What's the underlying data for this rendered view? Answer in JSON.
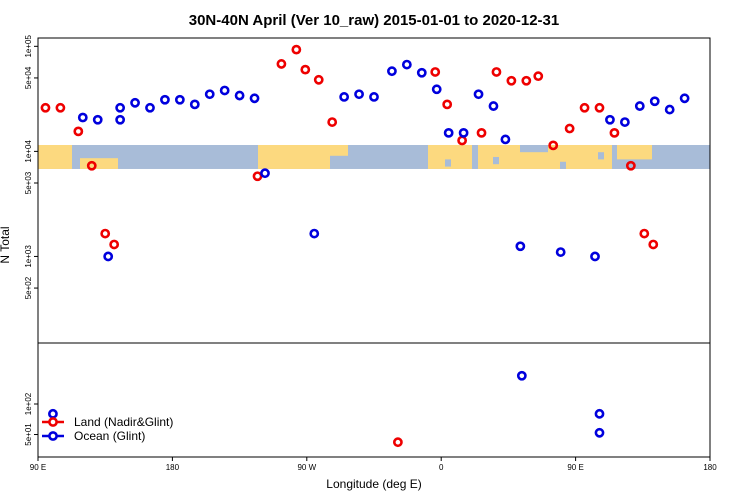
{
  "chart_data": {
    "type": "scatter",
    "title": "30N-40N April (Ver 10_raw)   2015-01-01 to 2020-12-31",
    "xlabel": "Longitude (deg E)",
    "ylabel": "N Total",
    "x_ticks": [
      {
        "value": 90,
        "label": "90 E"
      },
      {
        "value": 180,
        "label": "180"
      },
      {
        "value": 270,
        "label": "90 W"
      },
      {
        "value": 360,
        "label": "0"
      },
      {
        "value": 450,
        "label": "90 E"
      },
      {
        "value": 540,
        "label": "180"
      }
    ],
    "xlim": [
      90,
      540
    ],
    "upper_panel": {
      "scale": "log",
      "ylim": [
        150,
        120000
      ],
      "y_ticks": [
        {
          "value": 500,
          "label": "5e+02"
        },
        {
          "value": 1000,
          "label": "1e+03"
        },
        {
          "value": 5000,
          "label": "5e+03"
        },
        {
          "value": 10000,
          "label": "1e+04"
        },
        {
          "value": 50000,
          "label": "5e+04"
        },
        {
          "value": 100000,
          "label": "1e+05"
        }
      ],
      "map_band": {
        "y_top": 11500,
        "y_bottom": 6800,
        "ocean_color": "#a8bcd8",
        "land_color": "#fcd97f"
      }
    },
    "lower_panel": {
      "scale": "log",
      "ylim": [
        30,
        400
      ],
      "y_ticks": [
        {
          "value": 50,
          "label": "5e+01"
        },
        {
          "value": 100,
          "label": "1e+02"
        }
      ]
    },
    "series": [
      {
        "name": "Land (Nadir&Glint)",
        "color": "#ee0000",
        "upper": [
          [
            95,
            26000
          ],
          [
            105,
            26000
          ],
          [
            117,
            15500
          ],
          [
            126,
            7300
          ],
          [
            135,
            1650
          ],
          [
            141,
            1300
          ],
          [
            237,
            5800
          ],
          [
            253,
            68000
          ],
          [
            263,
            93000
          ],
          [
            269,
            60000
          ],
          [
            278,
            48000
          ],
          [
            287,
            19000
          ],
          [
            356,
            57000
          ],
          [
            364,
            28000
          ],
          [
            374,
            12700
          ],
          [
            387,
            15000
          ],
          [
            397,
            57000
          ],
          [
            407,
            47000
          ],
          [
            417,
            47000
          ],
          [
            425,
            52000
          ],
          [
            435,
            11400
          ],
          [
            446,
            16500
          ],
          [
            456,
            26000
          ],
          [
            466,
            26000
          ],
          [
            476,
            15000
          ],
          [
            487,
            7300
          ],
          [
            496,
            1650
          ],
          [
            502,
            1300
          ]
        ],
        "lower": [
          [
            331,
            42
          ]
        ]
      },
      {
        "name": "Ocean (Glint)",
        "color": "#0000dd",
        "upper": [
          [
            120,
            21000
          ],
          [
            130,
            20000
          ],
          [
            137,
            1000
          ],
          [
            145,
            20000
          ],
          [
            145,
            26000
          ],
          [
            155,
            29000
          ],
          [
            165,
            26000
          ],
          [
            175,
            31000
          ],
          [
            185,
            31000
          ],
          [
            195,
            28000
          ],
          [
            205,
            35000
          ],
          [
            215,
            38000
          ],
          [
            225,
            34000
          ],
          [
            235,
            32000
          ],
          [
            242,
            6200
          ],
          [
            275,
            1650
          ],
          [
            295,
            33000
          ],
          [
            305,
            35000
          ],
          [
            315,
            33000
          ],
          [
            327,
            58000
          ],
          [
            337,
            67000
          ],
          [
            347,
            56000
          ],
          [
            357,
            39000
          ],
          [
            365,
            15000
          ],
          [
            375,
            15000
          ],
          [
            385,
            35000
          ],
          [
            395,
            27000
          ],
          [
            403,
            13000
          ],
          [
            413,
            1250
          ],
          [
            440,
            1100
          ],
          [
            463,
            1000
          ],
          [
            473,
            20000
          ],
          [
            483,
            19000
          ],
          [
            493,
            27000
          ],
          [
            503,
            30000
          ],
          [
            513,
            25000
          ],
          [
            523,
            32000
          ]
        ],
        "lower": [
          [
            100,
            80
          ],
          [
            414,
            190
          ],
          [
            466,
            80
          ],
          [
            466,
            52
          ]
        ]
      }
    ]
  }
}
